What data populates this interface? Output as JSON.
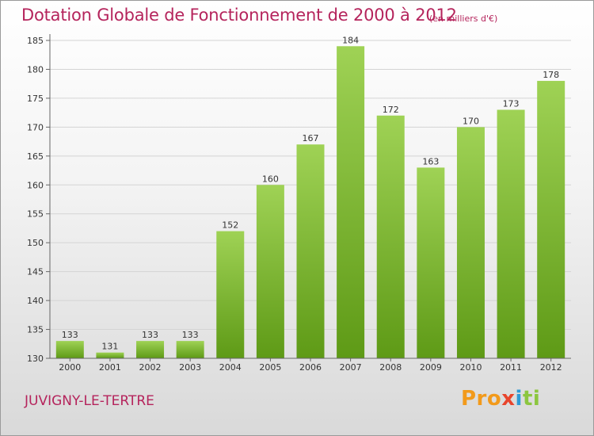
{
  "header": {
    "title": "Dotation Globale de Fonctionnement de 2000 à 2012",
    "subtitle": "(en milliers d'€)"
  },
  "footer": {
    "commune": "JUVIGNY-LE-TERTRE",
    "logo": [
      "Pro",
      "x",
      "i",
      "ti"
    ]
  },
  "colors": {
    "title": "#b5245c",
    "bar_top": "#9fd255",
    "bar_bottom": "#5e9a16",
    "background": "#e6e6e6"
  },
  "chart_data": {
    "type": "bar",
    "title": "Dotation Globale de Fonctionnement de 2000 à 2012",
    "subtitle": "(en milliers d'€)",
    "categories": [
      "2000",
      "2001",
      "2002",
      "2003",
      "2004",
      "2005",
      "2006",
      "2007",
      "2008",
      "2009",
      "2010",
      "2011",
      "2012"
    ],
    "values": [
      133,
      131,
      133,
      133,
      152,
      160,
      167,
      184,
      172,
      163,
      170,
      173,
      178
    ],
    "data_labels": [
      "133",
      "131",
      "133",
      "133",
      "152",
      "160",
      "167",
      "184",
      "172",
      "163",
      "170",
      "173",
      "178"
    ],
    "ylim": [
      130,
      185
    ],
    "yticks": [
      130,
      135,
      140,
      145,
      150,
      155,
      160,
      165,
      170,
      175,
      180,
      185
    ],
    "ytick_labels": [
      "130",
      "135",
      "140",
      "145",
      "150",
      "155",
      "160",
      "165",
      "170",
      "175",
      "180",
      "185"
    ],
    "xlabel": "",
    "ylabel": "",
    "grid": true
  }
}
